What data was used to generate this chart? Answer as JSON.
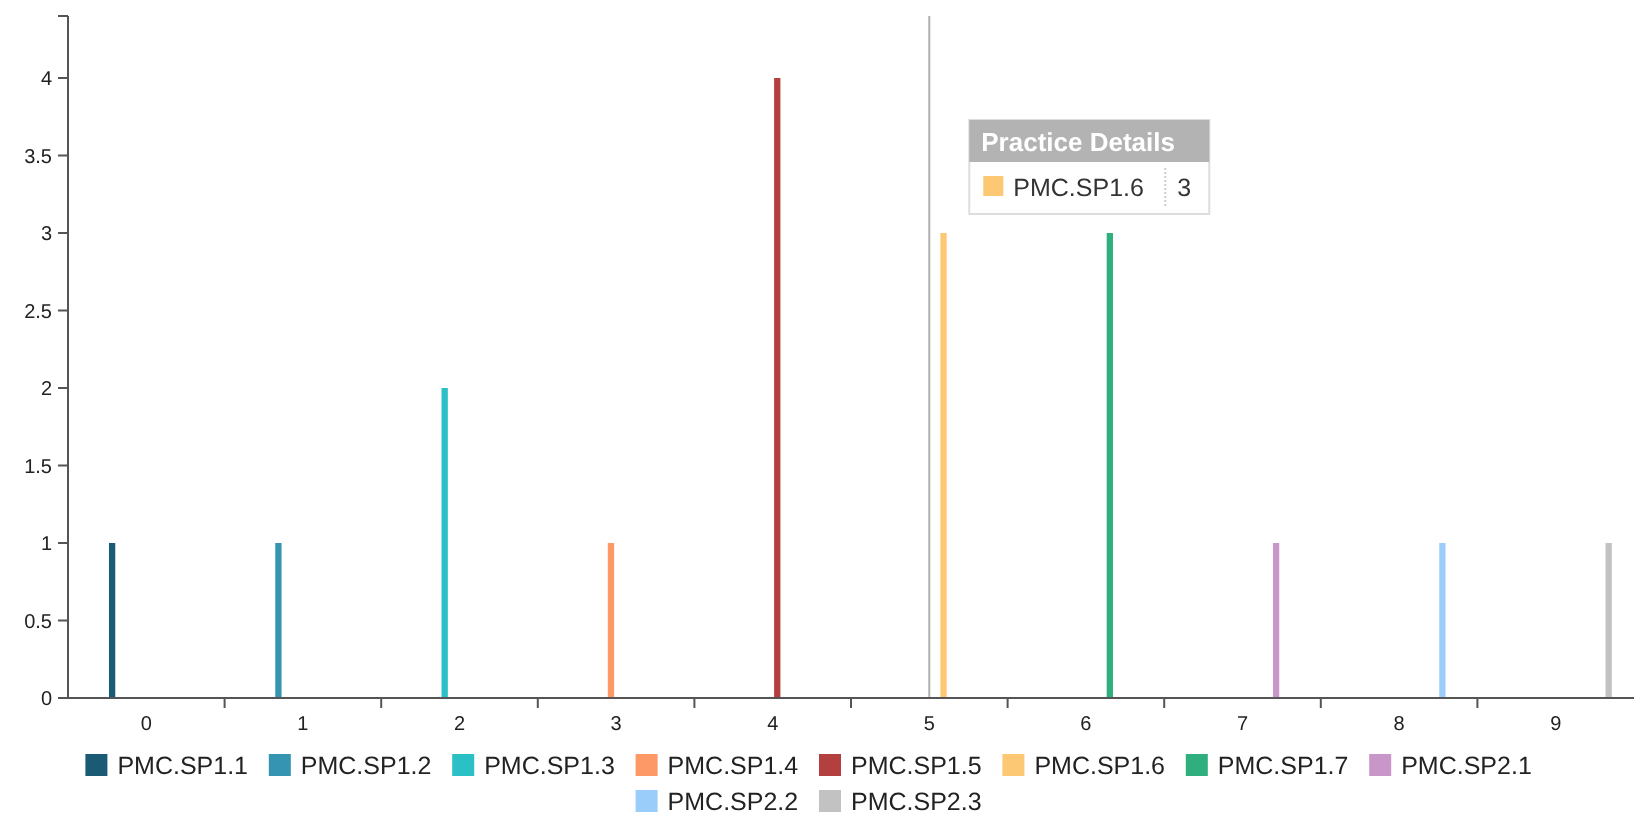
{
  "chart_data": {
    "type": "bar",
    "categories": [
      "0",
      "1",
      "2",
      "3",
      "4",
      "5",
      "6",
      "7",
      "8",
      "9"
    ],
    "series": [
      {
        "name": "PMC.SP1.1",
        "color": "#1a5a74",
        "values": [
          1,
          null,
          null,
          null,
          null,
          null,
          null,
          null,
          null,
          null
        ]
      },
      {
        "name": "PMC.SP1.2",
        "color": "#3694b3",
        "values": [
          null,
          1,
          null,
          null,
          null,
          null,
          null,
          null,
          null,
          null
        ]
      },
      {
        "name": "PMC.SP1.3",
        "color": "#2bbfc6",
        "values": [
          null,
          null,
          2,
          null,
          null,
          null,
          null,
          null,
          null,
          null
        ]
      },
      {
        "name": "PMC.SP1.4",
        "color": "#fc9966",
        "values": [
          null,
          null,
          null,
          1,
          null,
          null,
          null,
          null,
          null,
          null
        ]
      },
      {
        "name": "PMC.SP1.5",
        "color": "#b3403f",
        "values": [
          null,
          null,
          null,
          null,
          4,
          null,
          null,
          null,
          null,
          null
        ]
      },
      {
        "name": "PMC.SP1.6",
        "color": "#fcc874",
        "values": [
          null,
          null,
          null,
          null,
          null,
          3,
          null,
          null,
          null,
          null
        ]
      },
      {
        "name": "PMC.SP1.7",
        "color": "#2eaf7d",
        "values": [
          null,
          null,
          null,
          null,
          null,
          null,
          3,
          null,
          null,
          null
        ]
      },
      {
        "name": "PMC.SP2.1",
        "color": "#c996c9",
        "values": [
          null,
          null,
          null,
          null,
          null,
          null,
          null,
          1,
          null,
          null
        ]
      },
      {
        "name": "PMC.SP2.2",
        "color": "#9bcdfa",
        "values": [
          null,
          null,
          null,
          null,
          null,
          null,
          null,
          null,
          1,
          null
        ]
      },
      {
        "name": "PMC.SP2.3",
        "color": "#c2c2c2",
        "values": [
          null,
          null,
          null,
          null,
          null,
          null,
          null,
          null,
          null,
          1
        ]
      }
    ],
    "ylim": [
      0,
      4.4
    ],
    "yticks": [
      0,
      0.5,
      1,
      1.5,
      2,
      2.5,
      3,
      3.5,
      4
    ],
    "grid": false,
    "legend": "bottom",
    "ref_lines": [
      {
        "axis": "x",
        "value": "5",
        "color": "#b0b0b0"
      }
    ],
    "annotations": [
      "Practice Details",
      "PMC.SP1.6",
      "3"
    ]
  }
}
